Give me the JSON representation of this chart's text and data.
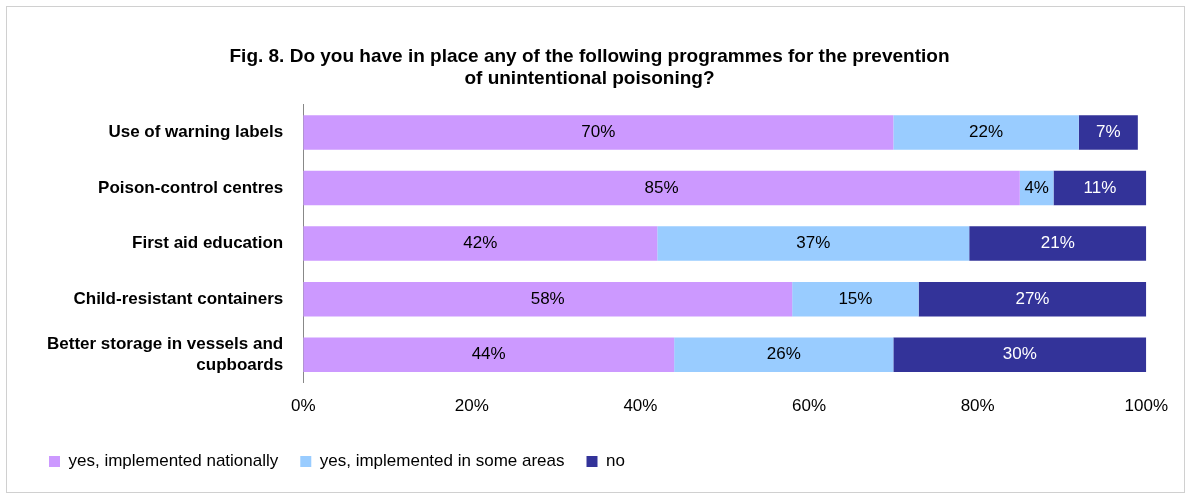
{
  "chart_data": {
    "type": "bar",
    "orientation": "horizontal",
    "stacked": true,
    "title": "Fig. 8. Do you have in place any of the following programmes for the prevention of unintentional poisoning?",
    "categories": [
      "Use of warning labels",
      "Poison-control centres",
      "First aid education",
      "Child-resistant containers",
      "Better storage in vessels and cupboards"
    ],
    "series": [
      {
        "name": "yes, implemented nationally",
        "color": "#cc99ff",
        "values": [
          70,
          85,
          42,
          58,
          44
        ],
        "value_labels": [
          "70%",
          "85%",
          "42%",
          "58%",
          "44%"
        ]
      },
      {
        "name": "yes, implemented in some areas",
        "color": "#99ccff",
        "values": [
          22,
          4,
          37,
          15,
          26
        ],
        "value_labels": [
          "22%",
          "4%",
          "37%",
          "15%",
          "26%"
        ]
      },
      {
        "name": "no",
        "color": "#333399",
        "values": [
          7,
          11,
          21,
          27,
          30
        ],
        "value_labels": [
          "7%",
          "11%",
          "21%",
          "27%",
          "30%"
        ]
      }
    ],
    "xlim": [
      0,
      100
    ],
    "xticks": [
      {
        "value": 0,
        "label": "0%"
      },
      {
        "value": 20,
        "label": "20%"
      },
      {
        "value": 40,
        "label": "40%"
      },
      {
        "value": 60,
        "label": "60%"
      },
      {
        "value": 80,
        "label": "80%"
      },
      {
        "value": 100,
        "label": "100%"
      }
    ],
    "grid": false,
    "legend": "bottom left"
  }
}
